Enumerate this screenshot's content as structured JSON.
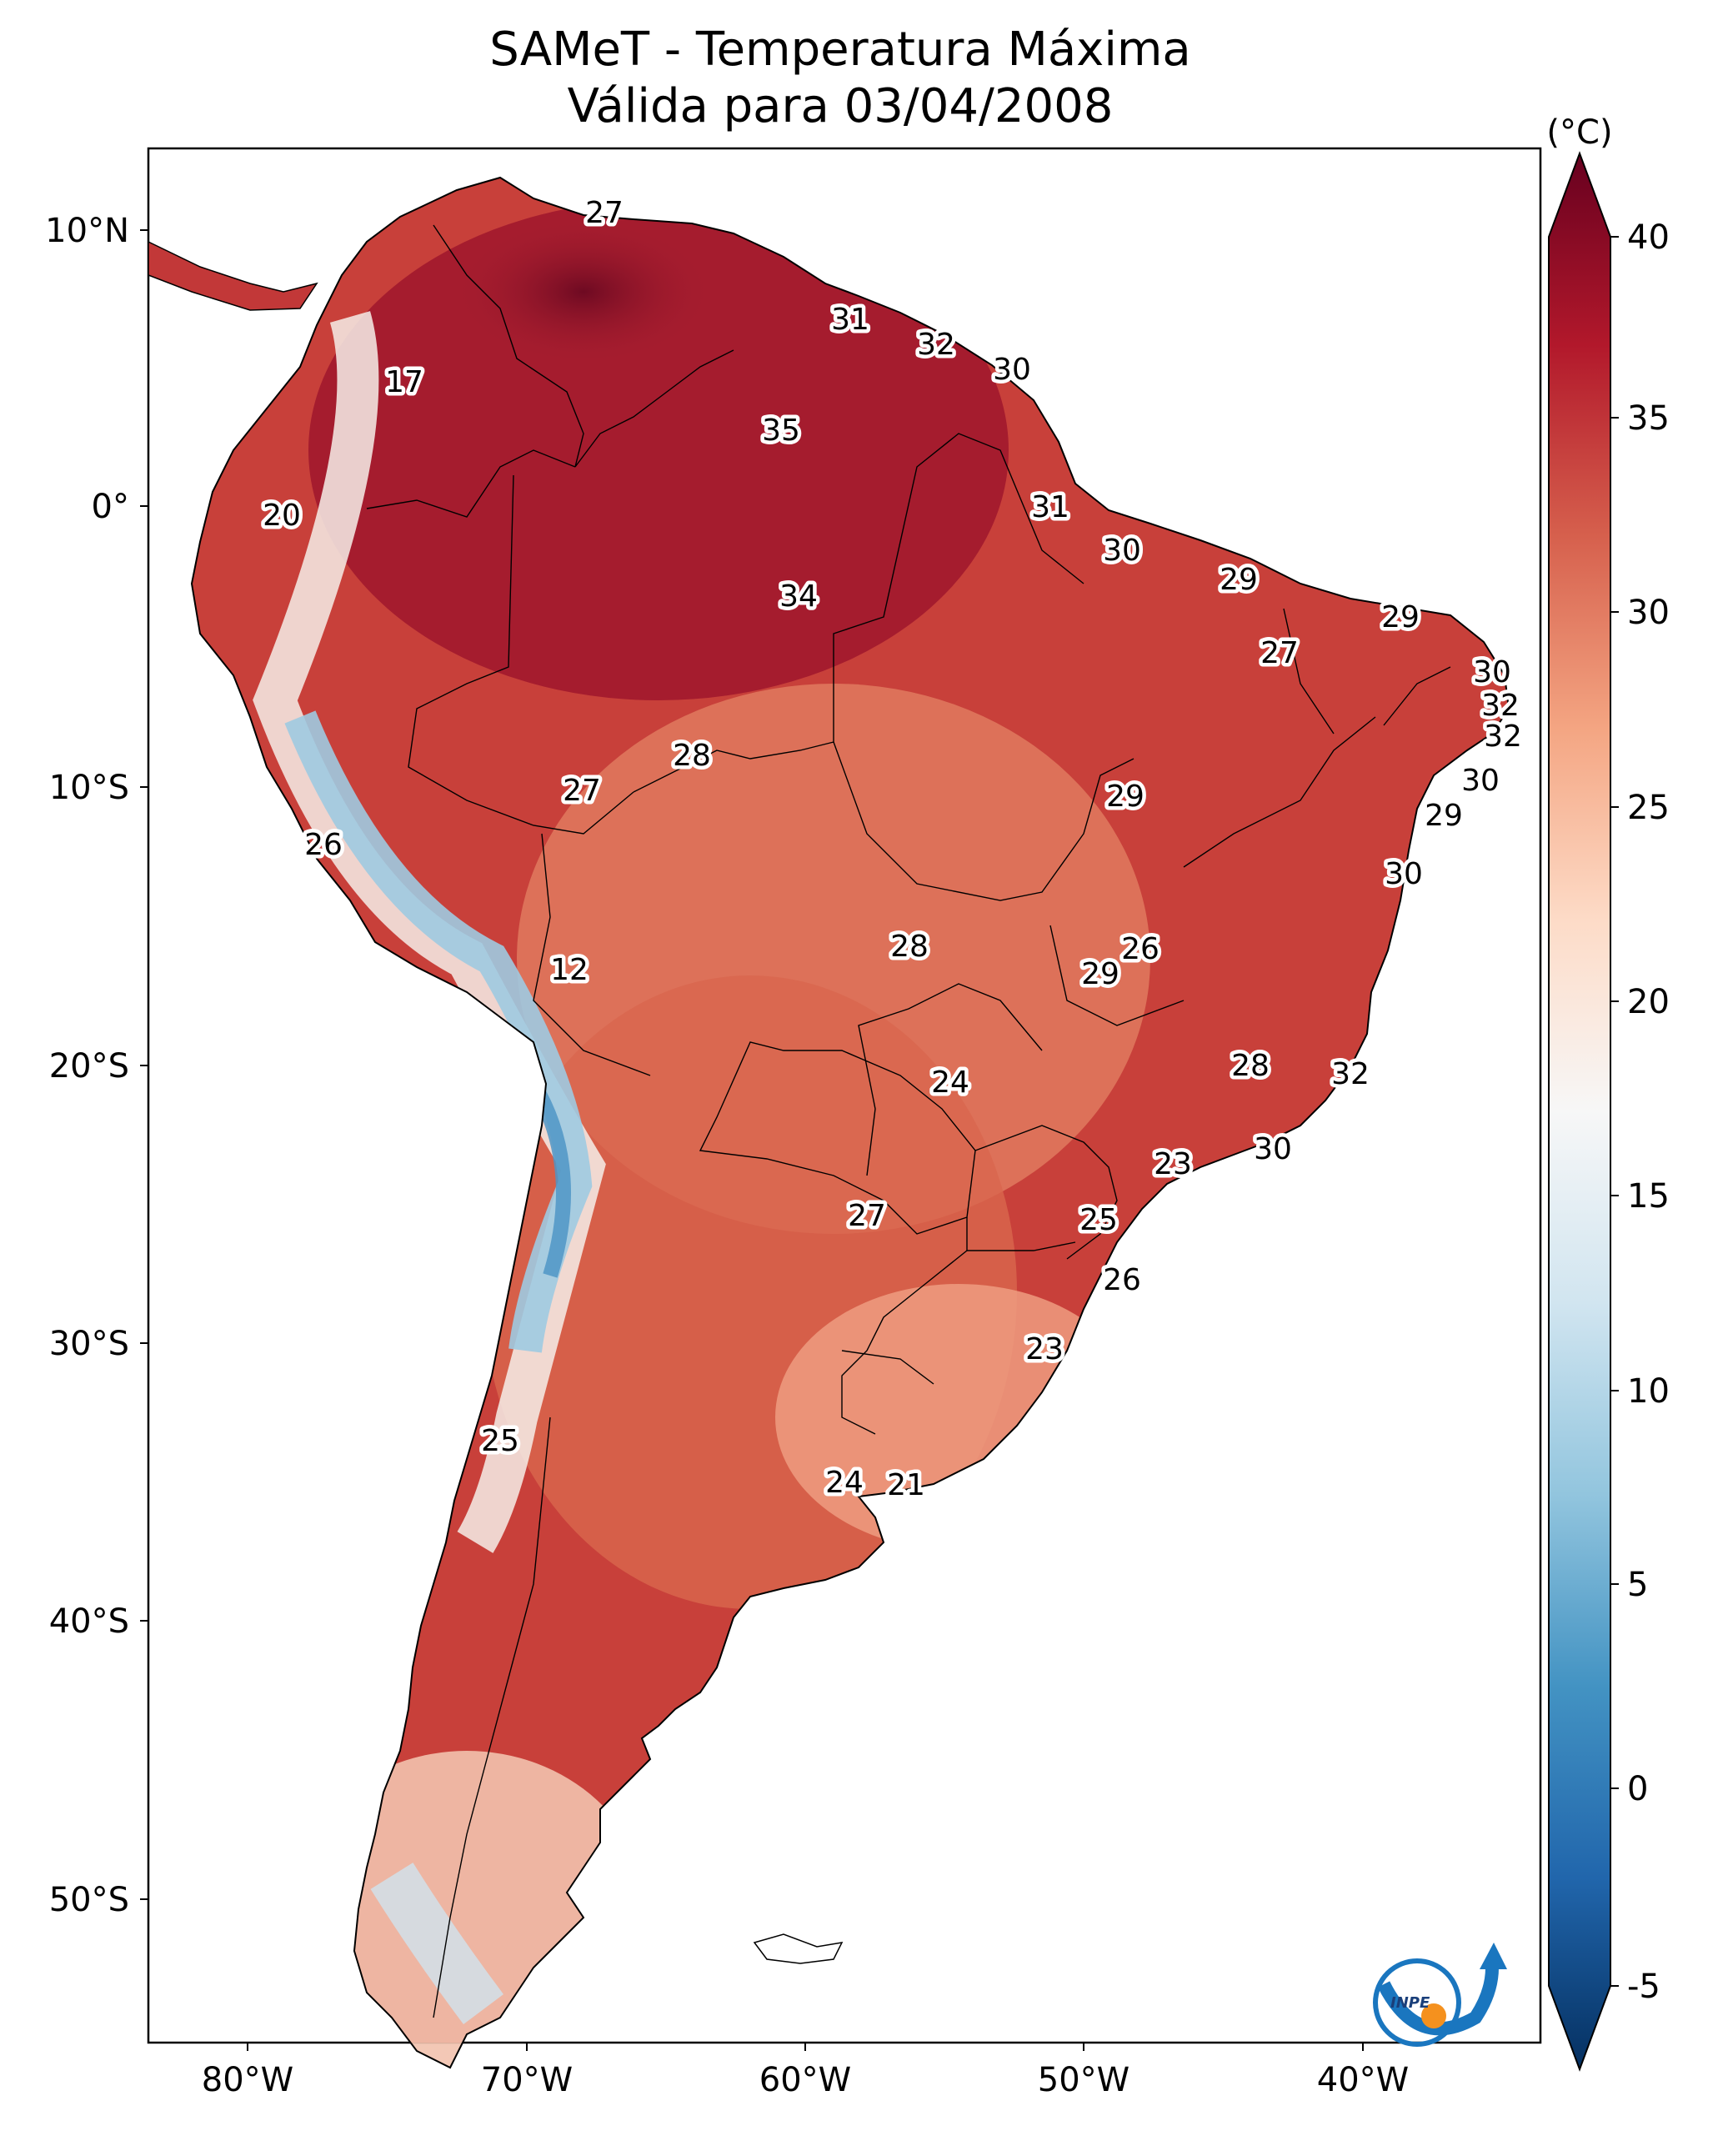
{
  "title_line1": "SAMeT - Temperatura Máxima",
  "title_line2": "Válida para 03/04/2008",
  "lat_ticks": [
    "10°N",
    "0°",
    "10°S",
    "20°S",
    "30°S",
    "40°S",
    "50°S"
  ],
  "lon_ticks": [
    "80°W",
    "70°W",
    "60°W",
    "50°W",
    "40°W"
  ],
  "colorbar": {
    "unit": "(°C)",
    "ticks": [
      "40",
      "35",
      "30",
      "25",
      "20",
      "15",
      "10",
      "5",
      "0",
      "-5"
    ],
    "colors": [
      "#053061",
      "#2166ac",
      "#4393c3",
      "#92c5de",
      "#d1e5f0",
      "#f7f7f7",
      "#fddbc7",
      "#f4a582",
      "#d6604d",
      "#b2182b",
      "#67001f"
    ]
  },
  "contour_labels": [
    "27",
    "31",
    "32",
    "30",
    "17",
    "35",
    "20",
    "31",
    "30",
    "34",
    "29",
    "29",
    "27",
    "30",
    "32",
    "32",
    "28",
    "30",
    "27",
    "29",
    "29",
    "26",
    "30",
    "12",
    "28",
    "26",
    "29",
    "24",
    "28",
    "32",
    "30",
    "23",
    "27",
    "25",
    "26",
    "23",
    "25",
    "24",
    "21"
  ],
  "logo_text": "INPE"
}
